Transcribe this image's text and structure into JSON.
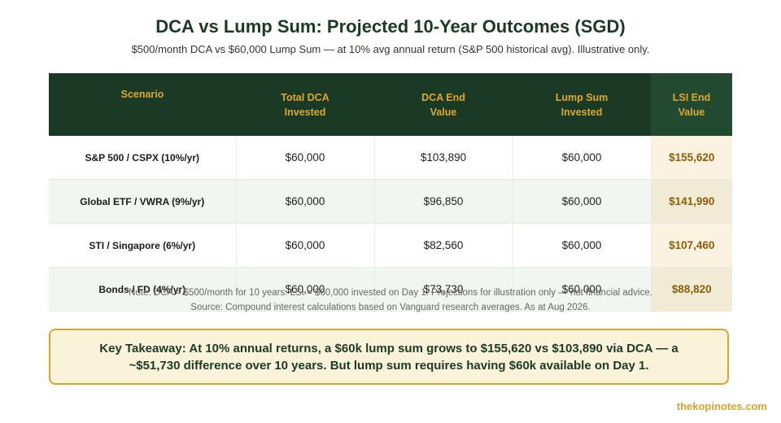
{
  "header": {
    "title": "DCA vs Lump Sum: Projected 10-Year Outcomes (SGD)",
    "subtitle": "$500/month DCA vs $60,000 Lump Sum — at 10% avg annual return (S&P 500 historical avg). Illustrative only."
  },
  "table": {
    "columns": [
      {
        "line1": "Scenario",
        "line2": ""
      },
      {
        "line1": "Total DCA",
        "line2": "Invested"
      },
      {
        "line1": "DCA End",
        "line2": "Value"
      },
      {
        "line1": "Lump Sum",
        "line2": "Invested"
      },
      {
        "line1": "LSI End",
        "line2": "Value"
      }
    ],
    "rows": [
      {
        "scenario": "S&P 500 / CSPX (10%/yr)",
        "dca_invested": "$60,000",
        "dca_end": "$103,890",
        "lump_invested": "$60,000",
        "lsi_end": "$155,620"
      },
      {
        "scenario": "Global ETF / VWRA (9%/yr)",
        "dca_invested": "$60,000",
        "dca_end": "$96,850",
        "lump_invested": "$60,000",
        "lsi_end": "$141,990"
      },
      {
        "scenario": "STI / Singapore (6%/yr)",
        "dca_invested": "$60,000",
        "dca_end": "$82,560",
        "lump_invested": "$60,000",
        "lsi_end": "$107,460"
      },
      {
        "scenario": "Bonds / FD (4%/yr)",
        "dca_invested": "$60,000",
        "dca_end": "$73,730",
        "lump_invested": "$60,000",
        "lsi_end": "$88,820"
      }
    ]
  },
  "notes": {
    "line1": "Note: DCA = $500/month for 10 years. LSI = $60,000 invested on Day 1. Projections for illustration only — not financial advice.",
    "line2": "Source: Compound interest calculations based on Vanguard research averages. As at Aug 2026."
  },
  "takeaway": {
    "text": "Key Takeaway: At 10% annual returns, a $60k lump sum grows to $155,620 vs $103,890 via DCA — a ~$51,730 difference over 10 years. But lump sum requires having $60k available on Day 1."
  },
  "footer": {
    "brand": "thekopinotes.com"
  },
  "colors": {
    "header_bg": "#1b3a26",
    "header_text": "#e0a62a",
    "accent_gold": "#d9a42c",
    "lsi_text": "#8a5e08"
  }
}
